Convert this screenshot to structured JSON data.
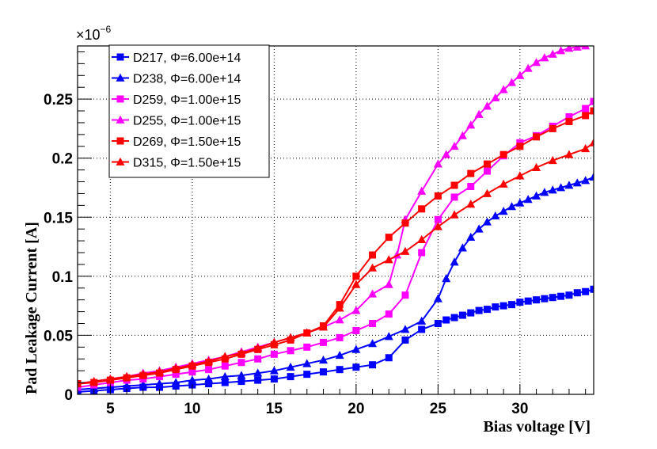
{
  "chart_data": {
    "type": "line",
    "title": "",
    "xlabel": "Bias voltage [V]",
    "ylabel": "Pad Leakage Current [A]",
    "y_scale_prefix": "×10",
    "y_scale_exponent": "−6",
    "xlim": [
      3,
      34.5
    ],
    "ylim": [
      0,
      0.295
    ],
    "x_ticks": [
      5,
      10,
      15,
      20,
      25,
      30
    ],
    "x_tick_labels": [
      "5",
      "10",
      "15",
      "20",
      "25",
      "30"
    ],
    "y_ticks": [
      0,
      0.05,
      0.1,
      0.15,
      0.2,
      0.25
    ],
    "y_tick_labels": [
      "0",
      "0.05",
      "0.1",
      "0.15",
      "0.2",
      "0.25"
    ],
    "grid": true,
    "legend_position": "top-left",
    "series": [
      {
        "name": "D217, Φ=6.00e+14",
        "color": "#0000ff",
        "marker": "square",
        "x": [
          3,
          4,
          5,
          6,
          7,
          8,
          9,
          10,
          11,
          12,
          13,
          14,
          15,
          16,
          17,
          18,
          19,
          20,
          21,
          22,
          23,
          24,
          25,
          25.5,
          26,
          26.5,
          27,
          27.5,
          28,
          28.5,
          29,
          29.5,
          30,
          30.5,
          31,
          31.5,
          32,
          32.5,
          33,
          33.5,
          34,
          34.5
        ],
        "values": [
          0.002,
          0.003,
          0.004,
          0.005,
          0.006,
          0.006,
          0.007,
          0.008,
          0.009,
          0.01,
          0.011,
          0.012,
          0.013,
          0.015,
          0.017,
          0.019,
          0.021,
          0.023,
          0.025,
          0.031,
          0.046,
          0.055,
          0.06,
          0.063,
          0.065,
          0.067,
          0.069,
          0.071,
          0.072,
          0.074,
          0.075,
          0.076,
          0.078,
          0.079,
          0.08,
          0.081,
          0.082,
          0.083,
          0.084,
          0.086,
          0.087,
          0.089
        ]
      },
      {
        "name": "D238, Φ=6.00e+14",
        "color": "#0000ff",
        "marker": "triangle",
        "x": [
          3,
          4,
          5,
          6,
          7,
          8,
          9,
          10,
          11,
          12,
          13,
          14,
          15,
          16,
          17,
          18,
          19,
          20,
          21,
          22,
          23,
          24,
          25,
          25.5,
          26,
          26.5,
          27,
          27.5,
          28,
          28.5,
          29,
          29.5,
          30,
          30.5,
          31,
          31.5,
          32,
          32.5,
          33,
          33.5,
          34,
          34.5
        ],
        "values": [
          0.004,
          0.005,
          0.006,
          0.007,
          0.008,
          0.009,
          0.01,
          0.012,
          0.013,
          0.015,
          0.016,
          0.018,
          0.02,
          0.023,
          0.026,
          0.029,
          0.033,
          0.038,
          0.043,
          0.049,
          0.055,
          0.062,
          0.081,
          0.098,
          0.112,
          0.124,
          0.133,
          0.14,
          0.146,
          0.151,
          0.155,
          0.159,
          0.162,
          0.165,
          0.168,
          0.171,
          0.173,
          0.175,
          0.177,
          0.179,
          0.181,
          0.184
        ]
      },
      {
        "name": "D259, Φ=1.00e+15",
        "color": "#ff00ff",
        "marker": "square",
        "x": [
          3,
          4,
          5,
          6,
          7,
          8,
          9,
          10,
          11,
          12,
          13,
          14,
          15,
          16,
          17,
          18,
          19,
          20,
          21,
          22,
          23,
          24,
          25,
          26,
          27,
          28,
          29,
          30,
          31,
          32,
          33,
          34,
          34.5
        ],
        "values": [
          0.006,
          0.008,
          0.01,
          0.012,
          0.013,
          0.015,
          0.017,
          0.019,
          0.021,
          0.024,
          0.027,
          0.03,
          0.034,
          0.037,
          0.04,
          0.044,
          0.048,
          0.054,
          0.06,
          0.068,
          0.084,
          0.12,
          0.148,
          0.167,
          0.176,
          0.189,
          0.202,
          0.213,
          0.219,
          0.227,
          0.235,
          0.242,
          0.248
        ]
      },
      {
        "name": "D255, Φ=1.00e+15",
        "color": "#ff00ff",
        "marker": "triangle",
        "x": [
          3,
          4,
          5,
          6,
          7,
          8,
          9,
          10,
          11,
          12,
          13,
          14,
          15,
          16,
          17,
          18,
          19,
          20,
          21,
          22,
          22.5,
          23,
          24,
          25,
          25.5,
          26,
          26.5,
          27,
          27.5,
          28,
          28.5,
          29,
          29.5,
          30,
          30.5,
          31,
          31.5,
          32,
          32.5,
          33,
          33.5,
          34
        ],
        "values": [
          0.009,
          0.011,
          0.013,
          0.015,
          0.018,
          0.02,
          0.023,
          0.026,
          0.029,
          0.032,
          0.036,
          0.04,
          0.044,
          0.048,
          0.052,
          0.057,
          0.063,
          0.071,
          0.085,
          0.093,
          0.118,
          0.148,
          0.172,
          0.195,
          0.203,
          0.21,
          0.219,
          0.228,
          0.237,
          0.244,
          0.251,
          0.258,
          0.264,
          0.27,
          0.276,
          0.281,
          0.285,
          0.288,
          0.291,
          0.293,
          0.294,
          0.295
        ]
      },
      {
        "name": "D269, Φ=1.50e+15",
        "color": "#ff0000",
        "marker": "square",
        "x": [
          3,
          4,
          5,
          6,
          7,
          8,
          9,
          10,
          11,
          12,
          13,
          14,
          15,
          16,
          17,
          18,
          19,
          20,
          21,
          22,
          23,
          24,
          25,
          26,
          27,
          28,
          29,
          30,
          31,
          32,
          33,
          34,
          34.5
        ],
        "values": [
          0.009,
          0.01,
          0.012,
          0.014,
          0.016,
          0.018,
          0.021,
          0.024,
          0.027,
          0.03,
          0.034,
          0.038,
          0.042,
          0.046,
          0.052,
          0.058,
          0.076,
          0.1,
          0.118,
          0.133,
          0.145,
          0.157,
          0.168,
          0.177,
          0.187,
          0.195,
          0.203,
          0.21,
          0.218,
          0.225,
          0.231,
          0.236,
          0.24
        ]
      },
      {
        "name": "D315, Φ=1.50e+15",
        "color": "#ff0000",
        "marker": "triangle",
        "x": [
          3,
          4,
          5,
          6,
          7,
          8,
          9,
          10,
          11,
          12,
          13,
          14,
          15,
          16,
          17,
          18,
          19,
          20,
          21,
          22,
          23,
          24,
          25,
          26,
          27,
          28,
          29,
          30,
          31,
          32,
          33,
          34,
          34.5
        ],
        "values": [
          0.009,
          0.011,
          0.013,
          0.015,
          0.017,
          0.019,
          0.022,
          0.025,
          0.028,
          0.032,
          0.035,
          0.039,
          0.044,
          0.048,
          0.052,
          0.057,
          0.073,
          0.093,
          0.107,
          0.114,
          0.121,
          0.131,
          0.142,
          0.152,
          0.161,
          0.17,
          0.178,
          0.185,
          0.192,
          0.198,
          0.203,
          0.208,
          0.213
        ]
      }
    ]
  }
}
